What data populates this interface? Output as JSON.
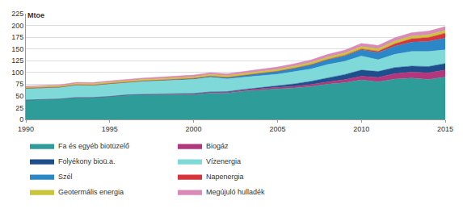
{
  "chart_data": {
    "type": "area",
    "stacked": true,
    "y_label": "Mtoe",
    "x": [
      1990,
      1991,
      1992,
      1993,
      1994,
      1995,
      1996,
      1997,
      1998,
      1999,
      2000,
      2001,
      2002,
      2003,
      2004,
      2005,
      2006,
      2007,
      2008,
      2009,
      2010,
      2011,
      2012,
      2013,
      2014,
      2015
    ],
    "xlim": [
      1990,
      2015
    ],
    "xticks": [
      1990,
      1995,
      2000,
      2005,
      2010,
      2015
    ],
    "ylim": [
      0,
      225
    ],
    "yticks": [
      0,
      25,
      50,
      75,
      100,
      125,
      150,
      175,
      200,
      225
    ],
    "grid": true,
    "legend": "bottom",
    "series": [
      {
        "name": "Fa és egyéb biotüzelő",
        "color": "#2e9c98",
        "values": [
          41,
          42,
          43,
          46,
          46,
          48,
          51,
          52,
          52,
          53,
          53,
          56,
          56,
          60,
          63,
          65,
          67,
          70,
          75,
          78,
          84,
          80,
          86,
          88,
          85,
          90
        ]
      },
      {
        "name": "Biogáz",
        "color": "#b3377c",
        "values": [
          0.3,
          0.4,
          0.5,
          0.6,
          0.7,
          0.8,
          1,
          1,
          1.2,
          1.4,
          1.6,
          1.8,
          2.1,
          2.5,
          2.8,
          3.2,
          3.6,
          4.2,
          5,
          6.5,
          8,
          9.5,
          11.5,
          13,
          14,
          15
        ]
      },
      {
        "name": "Folyékony bioü.a.",
        "color": "#1f4e8c",
        "values": [
          0,
          0,
          0,
          0,
          0,
          0.1,
          0.2,
          0.3,
          0.4,
          0.5,
          0.6,
          0.8,
          1,
          1.3,
          1.7,
          3,
          5,
          7,
          9,
          11,
          13,
          12.5,
          13,
          12.5,
          13.5,
          14
        ]
      },
      {
        "name": "Vízenergia",
        "color": "#7fd9d9",
        "values": [
          25,
          25,
          25,
          27,
          26,
          27,
          27,
          28,
          29,
          29,
          30,
          31,
          27,
          26,
          26,
          25,
          26,
          26,
          28,
          28,
          30,
          25,
          28,
          31,
          32,
          29
        ]
      },
      {
        "name": "Szél",
        "color": "#2b87c6",
        "values": [
          0,
          0,
          0.1,
          0.1,
          0.2,
          0.3,
          0.4,
          0.6,
          0.9,
          1.2,
          1.9,
          2.3,
          3,
          3.8,
          5,
          5.9,
          7,
          8.9,
          10,
          11.5,
          13,
          15.2,
          17.5,
          20,
          21.5,
          25
        ]
      },
      {
        "name": "Napenergia",
        "color": "#d9343b",
        "values": [
          0.1,
          0.1,
          0.1,
          0.1,
          0.1,
          0.1,
          0.1,
          0.1,
          0.1,
          0.1,
          0.2,
          0.2,
          0.2,
          0.3,
          0.3,
          0.4,
          0.5,
          0.6,
          0.9,
          1.3,
          2,
          3,
          5,
          7.1,
          8.3,
          10.5
        ]
      },
      {
        "name": "Geotermális energia",
        "color": "#c9c43b",
        "values": [
          2.5,
          2.6,
          2.7,
          2.8,
          2.9,
          3,
          3.1,
          3.2,
          3.3,
          3.4,
          3.5,
          3.6,
          3.7,
          3.8,
          3.9,
          4,
          4.2,
          4.4,
          4.6,
          4.8,
          5,
          5.2,
          5.4,
          5.6,
          5.8,
          6
        ]
      },
      {
        "name": "Megújuló hulladék",
        "color": "#d98bb8",
        "values": [
          2,
          2.1,
          2.2,
          2.4,
          2.5,
          2.7,
          2.9,
          3,
          3.2,
          3.4,
          3.6,
          3.8,
          4,
          4.3,
          4.6,
          5,
          5.3,
          5.6,
          6,
          6.3,
          6.7,
          7,
          7.3,
          7.6,
          7.8,
          8
        ]
      }
    ]
  }
}
